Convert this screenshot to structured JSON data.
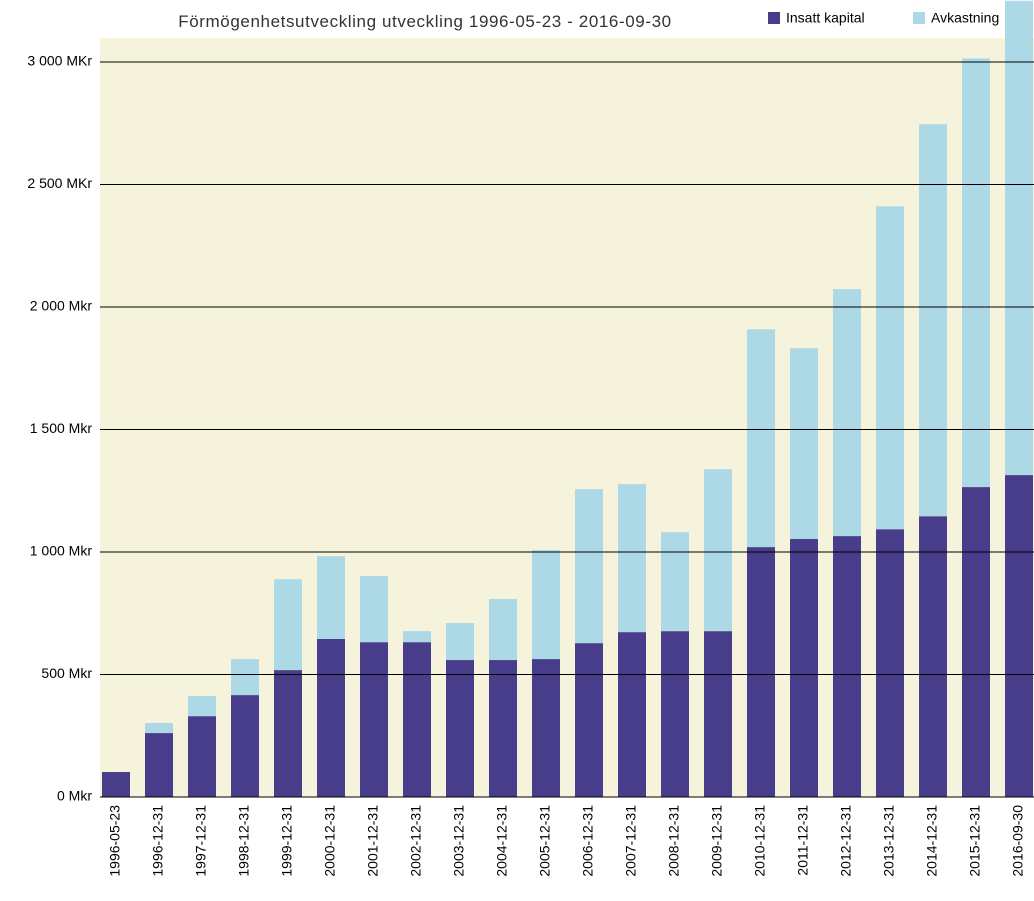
{
  "chart_data": {
    "type": "stacked_bar",
    "title": "Förmögenhetsutveckling utveckling 1996-05-23 - 2016-09-30",
    "categories": [
      "1996-05-23",
      "1996-12-31",
      "1997-12-31",
      "1998-12-31",
      "1999-12-31",
      "2000-12-31",
      "2001-12-31",
      "2002-12-31",
      "2003-12-31",
      "2004-12-31",
      "2005-12-31",
      "2006-12-31",
      "2007-12-31",
      "2008-12-31",
      "2009-12-31",
      "2010-12-31",
      "2011-12-31",
      "2012-12-31",
      "2013-12-31",
      "2014-12-31",
      "2015-12-31",
      "2016-09-30"
    ],
    "series": [
      {
        "name": "Insatt kapital",
        "color": "#483d8b",
        "values": [
          102,
          261,
          330,
          416,
          518,
          645,
          632,
          632,
          559,
          559,
          563,
          628,
          673,
          677,
          677,
          1020,
          1053,
          1065,
          1093,
          1146,
          1265,
          1314
        ]
      },
      {
        "name": "Avkastning",
        "color": "#add8e6",
        "values": [
          0,
          41,
          82,
          147,
          371,
          338,
          270,
          45,
          151,
          249,
          445,
          629,
          604,
          404,
          661,
          889,
          779,
          1008,
          1318,
          1600,
          1750,
          1936
        ]
      }
    ],
    "ylim": [
      0,
      3100
    ],
    "yticks": [
      {
        "value": 0,
        "label": "0 Mkr"
      },
      {
        "value": 500,
        "label": "500 Mkr"
      },
      {
        "value": 1000,
        "label": "1 000 Mkr"
      },
      {
        "value": 1500,
        "label": "1 500 Mkr"
      },
      {
        "value": 2000,
        "label": "2 000 Mkr"
      },
      {
        "value": 2500,
        "label": "2 500 MKr"
      },
      {
        "value": 3000,
        "label": "3 000 MKr"
      }
    ],
    "grid": true,
    "legend": "top-right"
  }
}
